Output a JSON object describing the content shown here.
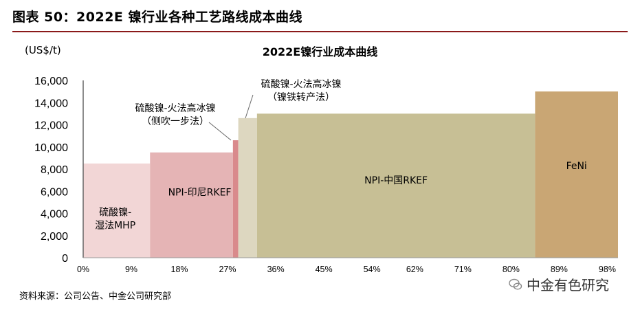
{
  "figure_title": "图表 50：2022E 镍行业各种工艺路线成本曲线",
  "source": "资料来源：公司公告、中金公司研究部",
  "watermark": "中金有色研究",
  "chart_data": {
    "type": "bar",
    "subtype": "cost-curve",
    "title": "2022E镍行业成本曲线",
    "ylabel": "(US$/t)",
    "ylim": [
      0,
      16000
    ],
    "yticks": [
      0,
      2000,
      4000,
      6000,
      8000,
      10000,
      12000,
      14000,
      16000
    ],
    "ytick_labels": [
      "0",
      "2,000",
      "4,000",
      "6,000",
      "8,000",
      "10,000",
      "12,000",
      "14,000",
      "16,000"
    ],
    "xlim": [
      0,
      100
    ],
    "xticks": [
      0,
      9,
      18,
      27,
      36,
      45,
      54,
      62,
      71,
      80,
      89,
      98
    ],
    "xtick_labels": [
      "0%",
      "9%",
      "18%",
      "27%",
      "36%",
      "45%",
      "54%",
      "62%",
      "71%",
      "80%",
      "89%",
      "98%"
    ],
    "grid": false,
    "segments": [
      {
        "label": "硫酸镍-湿法MHP",
        "label_lines": [
          "硫酸镍-",
          "湿法MHP"
        ],
        "x_start": 0,
        "x_end": 12.5,
        "value": 8500,
        "color": "#f2d6d6"
      },
      {
        "label": "NPI-印尼RKEF",
        "label_lines": [
          "NPI-印尼RKEF"
        ],
        "x_start": 12.5,
        "x_end": 28.0,
        "value": 9500,
        "color": "#e5b4b5"
      },
      {
        "label": "硫酸镍-火法高冰镍（侧吹一步法）",
        "label_lines": [
          "硫酸镍-火法高冰镍",
          "（侧吹一步法）"
        ],
        "x_start": 28.0,
        "x_end": 29.0,
        "value": 10600,
        "color": "#d98a8c"
      },
      {
        "label": "硫酸镍-火法高冰镍（镍铁转产法）",
        "label_lines": [
          "硫酸镍-火法高冰镍",
          "（镍铁转产法）"
        ],
        "x_start": 29.0,
        "x_end": 32.5,
        "value": 12600,
        "color": "#ddd7c0"
      },
      {
        "label": "NPI-中国RKEF",
        "label_lines": [
          "NPI-中国RKEF"
        ],
        "x_start": 32.5,
        "x_end": 84.5,
        "value": 13000,
        "color": "#c7bf95"
      },
      {
        "label": "FeNi",
        "label_lines": [
          "FeNi"
        ],
        "x_start": 84.5,
        "x_end": 100,
        "value": 15000,
        "color": "#c9a674"
      }
    ]
  }
}
